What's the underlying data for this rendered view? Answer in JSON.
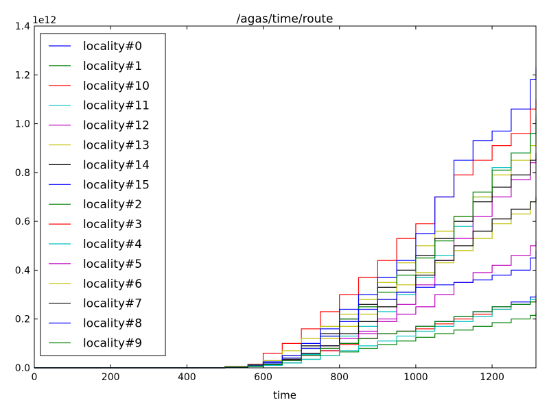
{
  "chart_data": {
    "type": "line",
    "title": "/agas/time/route",
    "xlabel": "time",
    "ylabel": "",
    "y_offset_label": "1e12",
    "xlim": [
      0,
      1315
    ],
    "ylim": [
      0,
      1.4
    ],
    "xticks": [
      0,
      200,
      400,
      600,
      800,
      1000,
      1200
    ],
    "yticks": [
      0.0,
      0.2,
      0.4,
      0.6,
      0.8,
      1.0,
      1.2,
      1.4
    ],
    "xtick_labels": [
      "0",
      "200",
      "400",
      "600",
      "800",
      "1000",
      "1200"
    ],
    "ytick_labels": [
      "0.0",
      "0.2",
      "0.4",
      "0.6",
      "0.8",
      "1.0",
      "1.2",
      "1.4"
    ],
    "grid": false,
    "legend_position": "top-left",
    "series": [
      {
        "name": "locality#0",
        "color": "#0000ff",
        "x": [
          0,
          500,
          560,
          600,
          650,
          700,
          750,
          800,
          850,
          900,
          950,
          1000,
          1050,
          1100,
          1150,
          1200,
          1250,
          1300,
          1315
        ],
        "y": [
          0,
          0.005,
          0.01,
          0.015,
          0.03,
          0.05,
          0.07,
          0.1,
          0.12,
          0.14,
          0.15,
          0.17,
          0.19,
          0.21,
          0.23,
          0.25,
          0.27,
          0.29,
          0.3
        ]
      },
      {
        "name": "locality#1",
        "color": "#008000",
        "x": [
          0,
          500,
          560,
          600,
          650,
          700,
          750,
          800,
          850,
          900,
          950,
          1000,
          1050,
          1100,
          1150,
          1200,
          1250,
          1300,
          1315
        ],
        "y": [
          0,
          0.004,
          0.008,
          0.012,
          0.02,
          0.035,
          0.05,
          0.065,
          0.08,
          0.095,
          0.11,
          0.125,
          0.14,
          0.155,
          0.17,
          0.185,
          0.2,
          0.215,
          0.225
        ]
      },
      {
        "name": "locality#10",
        "color": "#ff0000",
        "x": [
          0,
          500,
          560,
          600,
          650,
          700,
          750,
          800,
          850,
          900,
          950,
          1000,
          1050,
          1100,
          1150,
          1200,
          1250,
          1300,
          1315
        ],
        "y": [
          0,
          0.005,
          0.015,
          0.06,
          0.1,
          0.16,
          0.23,
          0.3,
          0.37,
          0.44,
          0.53,
          0.59,
          0.7,
          0.79,
          0.85,
          0.91,
          0.96,
          1.06,
          1.1
        ]
      },
      {
        "name": "locality#11",
        "color": "#00bfbf",
        "x": [
          0,
          500,
          560,
          600,
          650,
          700,
          750,
          800,
          850,
          900,
          950,
          1000,
          1050,
          1100,
          1150,
          1200,
          1250,
          1300,
          1315
        ],
        "y": [
          0,
          0.003,
          0.008,
          0.015,
          0.03,
          0.055,
          0.09,
          0.13,
          0.17,
          0.23,
          0.3,
          0.37,
          0.46,
          0.58,
          0.7,
          0.82,
          0.88,
          0.96,
          1.04
        ]
      },
      {
        "name": "locality#12",
        "color": "#bf00bf",
        "x": [
          0,
          500,
          560,
          600,
          650,
          700,
          750,
          800,
          850,
          900,
          950,
          1000,
          1050,
          1100,
          1150,
          1200,
          1250,
          1300,
          1315
        ],
        "y": [
          0,
          0.003,
          0.008,
          0.015,
          0.035,
          0.06,
          0.09,
          0.12,
          0.15,
          0.2,
          0.26,
          0.34,
          0.44,
          0.53,
          0.62,
          0.7,
          0.77,
          0.84,
          0.86
        ]
      },
      {
        "name": "locality#13",
        "color": "#bfbf00",
        "x": [
          0,
          500,
          560,
          600,
          650,
          700,
          750,
          800,
          850,
          900,
          950,
          1000,
          1050,
          1100,
          1150,
          1200,
          1250,
          1300,
          1315
        ],
        "y": [
          0,
          0.003,
          0.008,
          0.03,
          0.07,
          0.12,
          0.17,
          0.22,
          0.28,
          0.35,
          0.43,
          0.5,
          0.56,
          0.62,
          0.7,
          0.79,
          0.85,
          0.91,
          0.96
        ]
      },
      {
        "name": "locality#14",
        "color": "#000000",
        "x": [
          0,
          500,
          560,
          600,
          650,
          700,
          750,
          800,
          850,
          900,
          950,
          1000,
          1050,
          1100,
          1150,
          1200,
          1250,
          1300,
          1315
        ],
        "y": [
          0,
          0.003,
          0.01,
          0.025,
          0.05,
          0.09,
          0.14,
          0.2,
          0.26,
          0.33,
          0.4,
          0.46,
          0.53,
          0.6,
          0.68,
          0.74,
          0.79,
          0.85,
          0.88
        ]
      },
      {
        "name": "locality#15",
        "color": "#0000ff",
        "x": [
          0,
          500,
          560,
          600,
          650,
          700,
          750,
          800,
          850,
          900,
          950,
          1000,
          1050,
          1100,
          1150,
          1200,
          1250,
          1300,
          1315
        ],
        "y": [
          0,
          0.004,
          0.012,
          0.025,
          0.05,
          0.1,
          0.16,
          0.24,
          0.3,
          0.37,
          0.44,
          0.55,
          0.7,
          0.85,
          0.93,
          0.97,
          1.06,
          1.18,
          1.23
        ]
      },
      {
        "name": "locality#2",
        "color": "#008000",
        "x": [
          0,
          500,
          560,
          600,
          650,
          700,
          750,
          800,
          850,
          900,
          950,
          1000,
          1050,
          1100,
          1150,
          1200,
          1250,
          1300,
          1315
        ],
        "y": [
          0,
          0.004,
          0.012,
          0.02,
          0.04,
          0.08,
          0.13,
          0.2,
          0.25,
          0.31,
          0.38,
          0.45,
          0.52,
          0.62,
          0.72,
          0.81,
          0.88,
          0.96,
          1.02
        ]
      },
      {
        "name": "locality#3",
        "color": "#ff0000",
        "x": [
          0,
          500,
          560,
          600,
          650,
          700,
          750,
          800,
          850,
          900,
          950,
          1000,
          1050,
          1100,
          1150,
          1200,
          1250,
          1300,
          1315
        ],
        "y": [
          0,
          0.004,
          0.008,
          0.015,
          0.03,
          0.05,
          0.07,
          0.095,
          0.12,
          0.14,
          0.15,
          0.16,
          0.18,
          0.2,
          0.22,
          0.24,
          0.26,
          0.27,
          0.28
        ]
      },
      {
        "name": "locality#4",
        "color": "#00bfbf",
        "x": [
          0,
          500,
          560,
          600,
          650,
          700,
          750,
          800,
          850,
          900,
          950,
          1000,
          1050,
          1100,
          1150,
          1200,
          1250,
          1300,
          1315
        ],
        "y": [
          0,
          0.002,
          0.005,
          0.01,
          0.02,
          0.035,
          0.05,
          0.07,
          0.09,
          0.11,
          0.13,
          0.15,
          0.17,
          0.19,
          0.21,
          0.24,
          0.26,
          0.28,
          0.29
        ]
      },
      {
        "name": "locality#5",
        "color": "#bf00bf",
        "x": [
          0,
          500,
          560,
          600,
          650,
          700,
          750,
          800,
          850,
          900,
          950,
          1000,
          1050,
          1100,
          1150,
          1200,
          1250,
          1300,
          1315
        ],
        "y": [
          0,
          0.003,
          0.008,
          0.015,
          0.03,
          0.06,
          0.08,
          0.1,
          0.14,
          0.19,
          0.22,
          0.25,
          0.3,
          0.35,
          0.39,
          0.42,
          0.46,
          0.5,
          0.52
        ]
      },
      {
        "name": "locality#6",
        "color": "#bfbf00",
        "x": [
          0,
          500,
          560,
          600,
          650,
          700,
          750,
          800,
          850,
          900,
          950,
          1000,
          1050,
          1100,
          1150,
          1200,
          1250,
          1300,
          1315
        ],
        "y": [
          0,
          0.003,
          0.008,
          0.02,
          0.04,
          0.08,
          0.12,
          0.17,
          0.22,
          0.28,
          0.34,
          0.39,
          0.43,
          0.48,
          0.53,
          0.59,
          0.63,
          0.68,
          0.7
        ]
      },
      {
        "name": "locality#7",
        "color": "#000000",
        "x": [
          0,
          500,
          560,
          600,
          650,
          700,
          750,
          800,
          850,
          900,
          950,
          1000,
          1050,
          1100,
          1150,
          1200,
          1250,
          1300,
          1315
        ],
        "y": [
          0,
          0.003,
          0.008,
          0.015,
          0.035,
          0.06,
          0.09,
          0.14,
          0.19,
          0.25,
          0.31,
          0.38,
          0.44,
          0.5,
          0.56,
          0.61,
          0.65,
          0.68,
          0.7
        ]
      },
      {
        "name": "locality#8",
        "color": "#0000ff",
        "x": [
          0,
          500,
          560,
          600,
          650,
          700,
          750,
          800,
          850,
          900,
          950,
          1000,
          1050,
          1100,
          1150,
          1200,
          1250,
          1300,
          1315
        ],
        "y": [
          0,
          0.004,
          0.01,
          0.02,
          0.04,
          0.08,
          0.13,
          0.19,
          0.24,
          0.28,
          0.31,
          0.33,
          0.34,
          0.35,
          0.36,
          0.38,
          0.4,
          0.45,
          0.48
        ]
      },
      {
        "name": "locality#9",
        "color": "#008000",
        "x": [
          0,
          500,
          560,
          600,
          650,
          700,
          750,
          800,
          850,
          900,
          950,
          1000,
          1050,
          1100,
          1150,
          1200,
          1250,
          1300,
          1315
        ],
        "y": [
          0,
          0.004,
          0.008,
          0.015,
          0.03,
          0.05,
          0.08,
          0.1,
          0.12,
          0.14,
          0.15,
          0.17,
          0.19,
          0.21,
          0.23,
          0.25,
          0.26,
          0.27,
          0.28
        ]
      }
    ]
  }
}
